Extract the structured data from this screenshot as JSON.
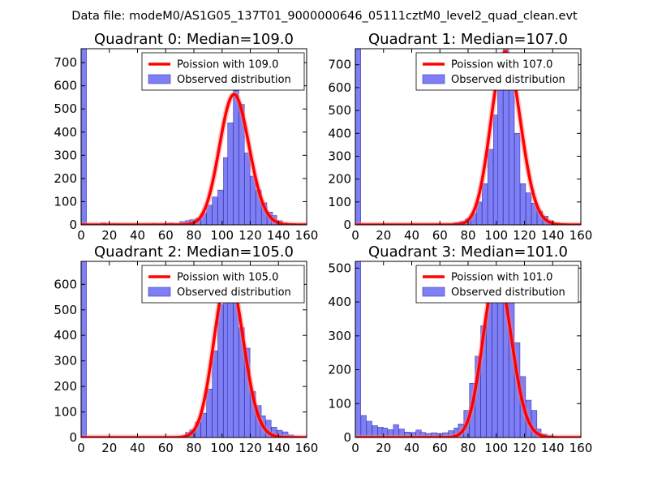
{
  "suptitle": "Data file: modeM0/AS1G05_137T01_9000000646_05111cztM0_level2_quad_clean.evt",
  "colors": {
    "hist_fill": "#7f7ff5",
    "hist_edge": "#3b3bb0",
    "curve": "#ff0000",
    "curve_halo": "#ff8080"
  },
  "chart_data": [
    {
      "type": "bar",
      "title": "Quadrant 0: Median=109.0",
      "median": 109.0,
      "xlim": [
        0,
        160
      ],
      "ylim": [
        0,
        760
      ],
      "xticks": [
        0,
        20,
        40,
        60,
        80,
        100,
        120,
        140,
        160
      ],
      "yticks": [
        0,
        100,
        200,
        300,
        400,
        500,
        600,
        700
      ],
      "bin_width": 3.8,
      "bins": [
        [
          0,
          760
        ],
        [
          14,
          8
        ],
        [
          22,
          5
        ],
        [
          50,
          5
        ],
        [
          58,
          5
        ],
        [
          62,
          7
        ],
        [
          66,
          5
        ],
        [
          70,
          14
        ],
        [
          74,
          18
        ],
        [
          77,
          22
        ],
        [
          81,
          28
        ],
        [
          85,
          50
        ],
        [
          89,
          85
        ],
        [
          93,
          120
        ],
        [
          97,
          150
        ],
        [
          101,
          290
        ],
        [
          104,
          440
        ],
        [
          108,
          580
        ],
        [
          112,
          520
        ],
        [
          116,
          310
        ],
        [
          120,
          210
        ],
        [
          124,
          150
        ],
        [
          128,
          95
        ],
        [
          132,
          55
        ],
        [
          135,
          40
        ],
        [
          139,
          18
        ],
        [
          143,
          8
        ],
        [
          147,
          5
        ],
        [
          151,
          3
        ]
      ],
      "legend": [
        "Poission with 109.0",
        "Observed distribution"
      ]
    },
    {
      "type": "bar",
      "title": "Quadrant 1: Median=107.0",
      "median": 107.0,
      "xlim": [
        0,
        160
      ],
      "ylim": [
        0,
        770
      ],
      "xticks": [
        0,
        20,
        40,
        60,
        80,
        100,
        120,
        140,
        160
      ],
      "yticks": [
        0,
        100,
        200,
        300,
        400,
        500,
        600,
        700
      ],
      "bin_width": 3.8,
      "bins": [
        [
          0,
          770
        ],
        [
          70,
          10
        ],
        [
          74,
          15
        ],
        [
          78,
          25
        ],
        [
          82,
          50
        ],
        [
          86,
          100
        ],
        [
          90,
          180
        ],
        [
          94,
          330
        ],
        [
          98,
          480
        ],
        [
          101,
          590
        ],
        [
          105,
          780
        ],
        [
          109,
          620
        ],
        [
          113,
          400
        ],
        [
          117,
          180
        ],
        [
          121,
          140
        ],
        [
          125,
          95
        ],
        [
          129,
          60
        ],
        [
          133,
          38
        ],
        [
          137,
          18
        ],
        [
          141,
          8
        ],
        [
          145,
          4
        ]
      ],
      "legend": [
        "Poission with 107.0",
        "Observed distribution"
      ]
    },
    {
      "type": "bar",
      "title": "Quadrant 2: Median=105.0",
      "median": 105.0,
      "xlim": [
        0,
        160
      ],
      "ylim": [
        0,
        690
      ],
      "xticks": [
        0,
        20,
        40,
        60,
        80,
        100,
        120,
        140,
        160
      ],
      "yticks": [
        0,
        100,
        200,
        300,
        400,
        500,
        600
      ],
      "bin_width": 3.8,
      "bins": [
        [
          0,
          690
        ],
        [
          74,
          20
        ],
        [
          77,
          30
        ],
        [
          81,
          60
        ],
        [
          85,
          95
        ],
        [
          89,
          190
        ],
        [
          93,
          340
        ],
        [
          97,
          520
        ],
        [
          101,
          650
        ],
        [
          104,
          660
        ],
        [
          108,
          560
        ],
        [
          112,
          430
        ],
        [
          116,
          350
        ],
        [
          120,
          180
        ],
        [
          124,
          125
        ],
        [
          127,
          85
        ],
        [
          131,
          68
        ],
        [
          135,
          40
        ],
        [
          139,
          28
        ],
        [
          143,
          22
        ],
        [
          147,
          10
        ],
        [
          151,
          5
        ]
      ],
      "legend": [
        "Poission with 105.0",
        "Observed distribution"
      ]
    },
    {
      "type": "bar",
      "title": "Quadrant 3: Median=101.0",
      "median": 101.0,
      "xlim": [
        0,
        160
      ],
      "ylim": [
        0,
        520
      ],
      "xticks": [
        0,
        20,
        40,
        60,
        80,
        100,
        120,
        140,
        160
      ],
      "yticks": [
        0,
        100,
        200,
        300,
        400,
        500
      ],
      "bin_width": 3.8,
      "bins": [
        [
          0,
          520
        ],
        [
          4,
          65
        ],
        [
          8,
          48
        ],
        [
          12,
          35
        ],
        [
          16,
          30
        ],
        [
          19,
          28
        ],
        [
          23,
          23
        ],
        [
          27,
          38
        ],
        [
          31,
          25
        ],
        [
          35,
          16
        ],
        [
          39,
          15
        ],
        [
          43,
          22
        ],
        [
          46,
          15
        ],
        [
          50,
          12
        ],
        [
          54,
          14
        ],
        [
          58,
          12
        ],
        [
          62,
          14
        ],
        [
          66,
          20
        ],
        [
          70,
          28
        ],
        [
          73,
          40
        ],
        [
          77,
          80
        ],
        [
          81,
          160
        ],
        [
          85,
          240
        ],
        [
          89,
          330
        ],
        [
          93,
          440
        ],
        [
          97,
          500
        ],
        [
          101,
          480
        ],
        [
          105,
          430
        ],
        [
          109,
          400
        ],
        [
          113,
          280
        ],
        [
          117,
          180
        ],
        [
          121,
          110
        ],
        [
          125,
          80
        ],
        [
          128,
          25
        ],
        [
          132,
          10
        ],
        [
          136,
          5
        ],
        [
          140,
          3
        ]
      ],
      "legend": [
        "Poission with 101.0",
        "Observed distribution"
      ]
    }
  ]
}
